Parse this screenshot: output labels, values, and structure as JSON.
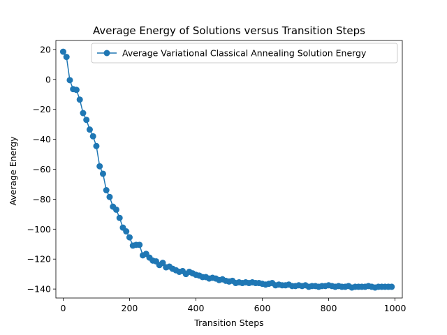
{
  "chart_data": {
    "type": "line",
    "title": "Average Energy of Solutions versus Transition Steps",
    "xlabel": "Transition Steps",
    "ylabel": "Average Energy",
    "xlim": [
      -22,
      1022
    ],
    "ylim": [
      -146,
      26
    ],
    "x_ticks": [
      0,
      200,
      400,
      600,
      800,
      1000
    ],
    "y_ticks": [
      20,
      0,
      -20,
      -40,
      -60,
      -80,
      -100,
      -120,
      -140
    ],
    "grid": false,
    "legend": {
      "placement": "top-right"
    },
    "colors": {
      "series": "#1f77b4"
    },
    "series": [
      {
        "name": "Average Variational Classical Annealing Solution Energy",
        "x": [
          0,
          10,
          20,
          30,
          40,
          50,
          60,
          70,
          80,
          90,
          100,
          110,
          120,
          130,
          140,
          150,
          160,
          170,
          180,
          190,
          200,
          210,
          220,
          230,
          240,
          250,
          260,
          270,
          280,
          290,
          300,
          310,
          320,
          330,
          340,
          350,
          360,
          370,
          380,
          390,
          400,
          410,
          420,
          430,
          440,
          450,
          460,
          470,
          480,
          490,
          500,
          510,
          520,
          530,
          540,
          550,
          560,
          570,
          580,
          590,
          600,
          610,
          620,
          630,
          640,
          650,
          660,
          670,
          680,
          690,
          700,
          710,
          720,
          730,
          740,
          750,
          760,
          770,
          780,
          790,
          800,
          810,
          820,
          830,
          840,
          850,
          860,
          870,
          880,
          890,
          900,
          910,
          920,
          930,
          940,
          950,
          960,
          970,
          980,
          990
        ],
        "y": [
          18.5,
          15.0,
          -0.5,
          -6.5,
          -7.0,
          -13.5,
          -22.5,
          -27.0,
          -33.5,
          -38.0,
          -44.5,
          -58.0,
          -63.0,
          -74.0,
          -78.5,
          -85.0,
          -87.0,
          -92.5,
          -99.0,
          -101.5,
          -105.5,
          -111.0,
          -110.5,
          -110.5,
          -117.5,
          -116.5,
          -119.0,
          -121.0,
          -121.5,
          -124.0,
          -122.5,
          -125.5,
          -125.0,
          -126.5,
          -127.5,
          -128.5,
          -128.0,
          -130.0,
          -128.5,
          -129.5,
          -130.5,
          -131.0,
          -132.0,
          -132.0,
          -133.0,
          -132.5,
          -133.0,
          -134.0,
          -133.5,
          -134.5,
          -135.0,
          -134.5,
          -136.0,
          -135.5,
          -136.0,
          -135.5,
          -136.0,
          -135.5,
          -136.0,
          -136.0,
          -136.5,
          -137.0,
          -136.5,
          -136.0,
          -137.5,
          -137.0,
          -137.5,
          -137.5,
          -137.0,
          -138.0,
          -138.0,
          -137.5,
          -138.0,
          -137.5,
          -138.5,
          -138.0,
          -138.0,
          -138.5,
          -138.0,
          -138.0,
          -137.5,
          -138.0,
          -138.5,
          -138.0,
          -138.5,
          -138.5,
          -138.0,
          -139.0,
          -138.5,
          -138.5,
          -138.5,
          -138.5,
          -138.0,
          -138.5,
          -139.0,
          -138.5,
          -138.5,
          -138.5,
          -138.5,
          -138.5
        ]
      }
    ]
  }
}
